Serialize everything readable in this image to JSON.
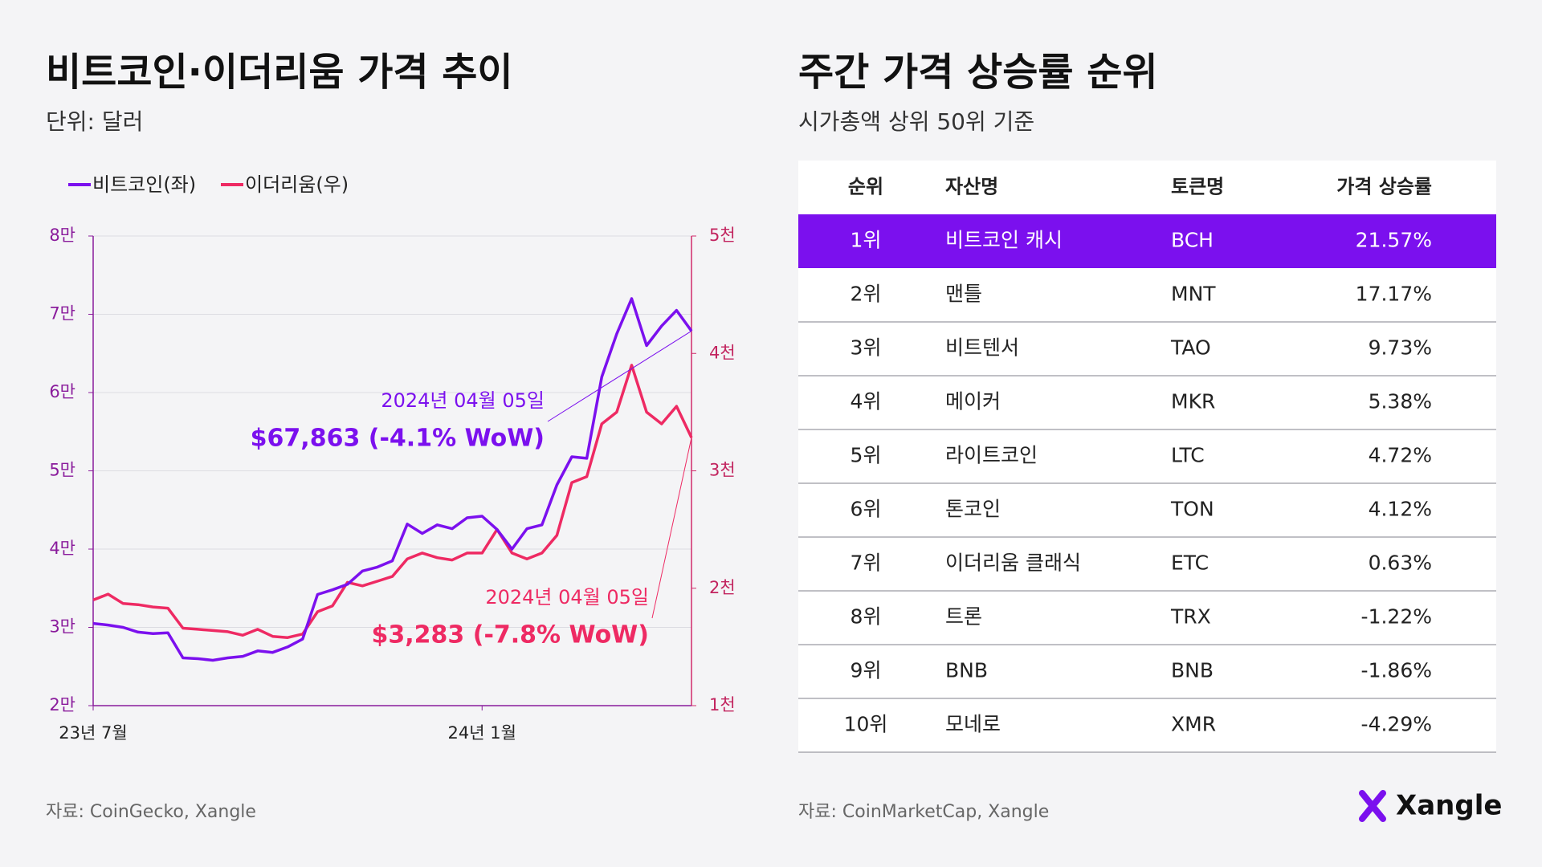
{
  "chart_data": {
    "type": "line",
    "title": "비트코인·이더리움 가격 추이",
    "subtitle": "단위: 달러",
    "source": "자료: CoinGecko, Xangle",
    "categories": [
      "23년 7월",
      null,
      null,
      null,
      null,
      null,
      null,
      null,
      null,
      null,
      null,
      null,
      null,
      null,
      null,
      null,
      null,
      null,
      null,
      null,
      null,
      null,
      null,
      null,
      null,
      null,
      "24년 1월",
      null,
      null,
      null,
      null,
      null,
      null,
      null,
      null,
      null,
      null,
      null,
      null,
      null,
      null
    ],
    "series": [
      {
        "name": "비트코인(좌)",
        "color": "#7b10ee",
        "axis": "y",
        "values": [
          30500,
          30300,
          30000,
          29400,
          29200,
          29300,
          26100,
          26000,
          25800,
          26100,
          26300,
          27000,
          26800,
          27500,
          28500,
          34200,
          34800,
          35500,
          37200,
          37700,
          38500,
          43200,
          42000,
          43100,
          42600,
          44000,
          44200,
          42500,
          40000,
          42600,
          43100,
          48200,
          51800,
          51600,
          62000,
          67500,
          72000,
          66000,
          68500,
          70500,
          67863
        ]
      },
      {
        "name": "이더리움(우)",
        "color": "#ee2a63",
        "axis": "y2",
        "values": [
          1900,
          1950,
          1870,
          1860,
          1840,
          1830,
          1660,
          1650,
          1640,
          1630,
          1600,
          1650,
          1590,
          1580,
          1610,
          1800,
          1850,
          2050,
          2020,
          2060,
          2100,
          2250,
          2300,
          2260,
          2240,
          2300,
          2300,
          2500,
          2300,
          2250,
          2300,
          2450,
          2900,
          2950,
          3400,
          3500,
          3900,
          3500,
          3400,
          3550,
          3283
        ]
      }
    ],
    "ylim": [
      20000,
      80000
    ],
    "yticks": [
      {
        "value": 20000,
        "label": "2만"
      },
      {
        "value": 30000,
        "label": "3만"
      },
      {
        "value": 40000,
        "label": "4만"
      },
      {
        "value": 50000,
        "label": "5만"
      },
      {
        "value": 60000,
        "label": "6만"
      },
      {
        "value": 70000,
        "label": "7만"
      },
      {
        "value": 80000,
        "label": "8만"
      }
    ],
    "y2lim": [
      1000,
      5000
    ],
    "y2ticks": [
      {
        "value": 1000,
        "label": "1천"
      },
      {
        "value": 2000,
        "label": "2천"
      },
      {
        "value": 3000,
        "label": "3천"
      },
      {
        "value": 4000,
        "label": "4천"
      },
      {
        "value": 5000,
        "label": "5천"
      }
    ],
    "grid": true,
    "annotations": [
      {
        "date": "2024년 04월 05일",
        "label": "$67,863 (-4.1% WoW)"
      },
      {
        "date": "2024년 04월 05일",
        "label": "$3,283 (-7.8% WoW)"
      }
    ]
  },
  "table": {
    "title": "주간 가격 상승률 순위",
    "subtitle": "시가총액 상위 50위 기준",
    "source": "자료: CoinMarketCap, Xangle",
    "headers": [
      "순위",
      "자산명",
      "토큰명",
      "가격 상승률"
    ],
    "highlight_row": 0,
    "rows": [
      [
        "1위",
        "비트코인 캐시",
        "BCH",
        "21.57%"
      ],
      [
        "2위",
        "맨틀",
        "MNT",
        "17.17%"
      ],
      [
        "3위",
        "비트텐서",
        "TAO",
        "9.73%"
      ],
      [
        "4위",
        "메이커",
        "MKR",
        "5.38%"
      ],
      [
        "5위",
        "라이트코인",
        "LTC",
        "4.72%"
      ],
      [
        "6위",
        "톤코인",
        "TON",
        "4.12%"
      ],
      [
        "7위",
        "이더리움 클래식",
        "ETC",
        "0.63%"
      ],
      [
        "8위",
        "트론",
        "TRX",
        "-1.22%"
      ],
      [
        "9위",
        "BNB",
        "BNB",
        "-1.86%"
      ],
      [
        "10위",
        "모네로",
        "XMR",
        "-4.29%"
      ]
    ]
  },
  "brand": "Xangle"
}
